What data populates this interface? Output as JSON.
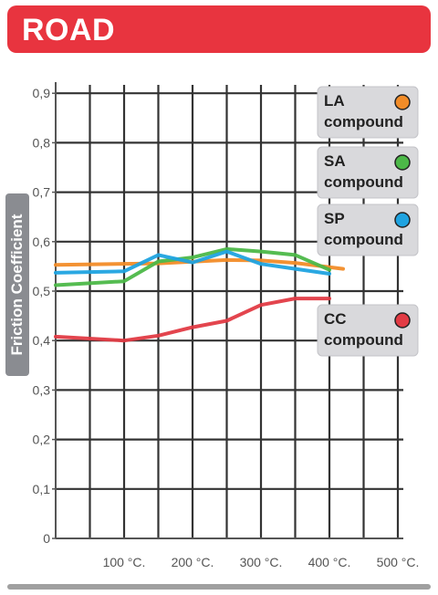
{
  "banner": {
    "title": "ROAD"
  },
  "chart_data": {
    "type": "line",
    "title": "ROAD",
    "ylabel": "Friction Coefficient",
    "xlabel": "",
    "x_ticks": [
      "100 °C.",
      "200 °C.",
      "300 °C.",
      "400 °C.",
      "500 °C."
    ],
    "y_ticks": [
      "0",
      "0,1",
      "0,2",
      "0,3",
      "0,4",
      "0,5",
      "0,6",
      "0,7",
      "0,8",
      "0,9"
    ],
    "xlim": [
      0,
      500
    ],
    "ylim": [
      0,
      0.9
    ],
    "grid": true,
    "legend_position": "right",
    "series": [
      {
        "name": "LA compound",
        "label_line1": "LA",
        "label_line2": "compound",
        "color": "#f28c28",
        "x": [
          0,
          150,
          250,
          300,
          350,
          420
        ],
        "y": [
          0.553,
          0.556,
          0.563,
          0.562,
          0.557,
          0.545
        ]
      },
      {
        "name": "SA compound",
        "label_line1": "SA",
        "label_line2": "compound",
        "color": "#4cb848",
        "x": [
          0,
          100,
          150,
          200,
          250,
          300,
          350,
          400
        ],
        "y": [
          0.512,
          0.52,
          0.56,
          0.568,
          0.585,
          0.58,
          0.573,
          0.543
        ]
      },
      {
        "name": "SP compound",
        "label_line1": "SP",
        "label_line2": "compound",
        "color": "#1fa3e0",
        "x": [
          0,
          100,
          150,
          200,
          250,
          300,
          350,
          400
        ],
        "y": [
          0.537,
          0.54,
          0.573,
          0.558,
          0.58,
          0.555,
          0.545,
          0.535
        ]
      },
      {
        "name": "CC compound",
        "label_line1": "CC",
        "label_line2": "compound",
        "color": "#e23b44",
        "x": [
          0,
          100,
          150,
          200,
          250,
          300,
          350,
          400
        ],
        "y": [
          0.408,
          0.4,
          0.41,
          0.427,
          0.44,
          0.472,
          0.485,
          0.485
        ]
      }
    ]
  }
}
